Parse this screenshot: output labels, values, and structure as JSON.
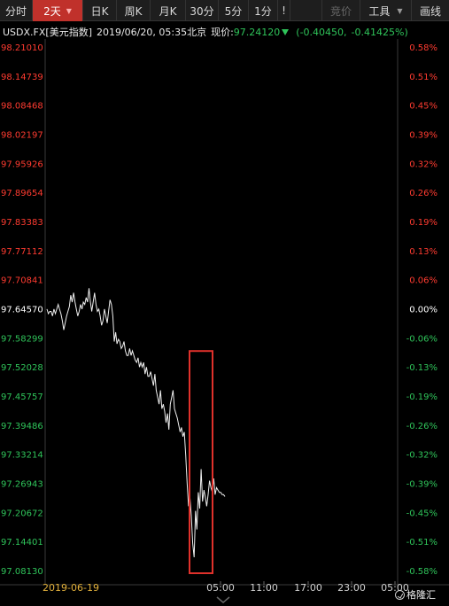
{
  "toolbar": {
    "timeshare": "分时",
    "two_day": "2天",
    "day_k": "日K",
    "week_k": "周K",
    "month_k": "月K",
    "min30": "30分",
    "min5": "5分",
    "min1": "1分",
    "more": "!",
    "auction": "竞价",
    "tools": "工具",
    "draw": "画线"
  },
  "info": {
    "symbol": "USDX.FX[美元指数]",
    "datetime": "2019/06/20, 05:35北京",
    "price_label": "现价:",
    "price": "97.24120",
    "change": "(-0.40450,",
    "change_pct": "-0.41425%)"
  },
  "colors": {
    "up": "#ff3b30",
    "down": "#2fc45a",
    "neutral": "#ffffff",
    "date": "#e3b23c",
    "highlight_box": "#e0312b"
  },
  "watermark": "格隆汇",
  "chart_data": {
    "type": "line",
    "title": "",
    "xlabel": "",
    "ylabel": "",
    "reference_price": 97.6457,
    "ylim": [
      97.0813,
      98.2101
    ],
    "y_ticks": [
      "98.21010",
      "98.14739",
      "98.08468",
      "98.02197",
      "97.95926",
      "97.89654",
      "97.83383",
      "97.77112",
      "97.70841",
      "97.64570",
      "97.58299",
      "97.52028",
      "97.45757",
      "97.39486",
      "97.33214",
      "97.26943",
      "97.20672",
      "97.14401",
      "97.08130"
    ],
    "pct_ticks": [
      "0.58%",
      "0.51%",
      "0.45%",
      "0.39%",
      "0.32%",
      "0.26%",
      "0.19%",
      "0.13%",
      "0.06%",
      "0.00%",
      "-0.06%",
      "-0.13%",
      "-0.19%",
      "-0.26%",
      "-0.32%",
      "-0.39%",
      "-0.45%",
      "-0.51%",
      "-0.58%"
    ],
    "x_ticks": [
      "2019-06-19",
      "05:00",
      "11:00",
      "17:00",
      "23:00",
      "05:00"
    ],
    "series": [
      {
        "values": [
          97.645,
          97.635,
          97.64,
          97.64,
          97.63,
          97.645,
          97.635,
          97.645,
          97.655,
          97.645,
          97.635,
          97.62,
          97.6,
          97.615,
          97.63,
          97.64,
          97.65,
          97.675,
          97.66,
          97.68,
          97.66,
          97.645,
          97.63,
          97.64,
          97.655,
          97.645,
          97.66,
          97.655,
          97.67,
          97.66,
          97.69,
          97.66,
          97.64,
          97.66,
          97.68,
          97.655,
          97.64,
          97.645,
          97.63,
          97.61,
          97.62,
          97.645,
          97.63,
          97.615,
          97.64,
          97.665,
          97.655,
          97.63,
          97.575,
          97.595,
          97.57,
          97.58,
          97.575,
          97.56,
          97.565,
          97.575,
          97.555,
          97.545,
          97.545,
          97.56,
          97.545,
          97.555,
          97.545,
          97.535,
          97.53,
          97.54,
          97.52,
          97.53,
          97.52,
          97.53,
          97.505,
          97.52,
          97.5,
          97.5,
          97.51,
          97.495,
          97.48,
          97.505,
          97.47,
          97.455,
          97.44,
          97.47,
          97.43,
          97.44,
          97.425,
          97.4,
          97.42,
          97.385,
          97.44,
          97.455,
          97.47,
          97.43,
          97.42,
          97.41,
          97.395,
          97.38,
          97.39,
          97.37,
          97.38,
          97.33,
          97.27,
          97.22,
          97.24,
          97.2,
          97.14,
          97.11,
          97.21,
          97.17,
          97.25,
          97.215,
          97.3,
          97.23,
          97.255,
          97.24,
          97.22,
          97.245,
          97.275,
          97.26,
          97.25,
          97.28,
          97.245,
          97.26,
          97.255,
          97.25,
          97.25,
          97.245,
          97.245,
          97.241
        ]
      }
    ],
    "highlight_box": {
      "x_range_note": "sell-off around 05:00",
      "y_range": [
        97.0813,
        97.5202
      ]
    }
  }
}
